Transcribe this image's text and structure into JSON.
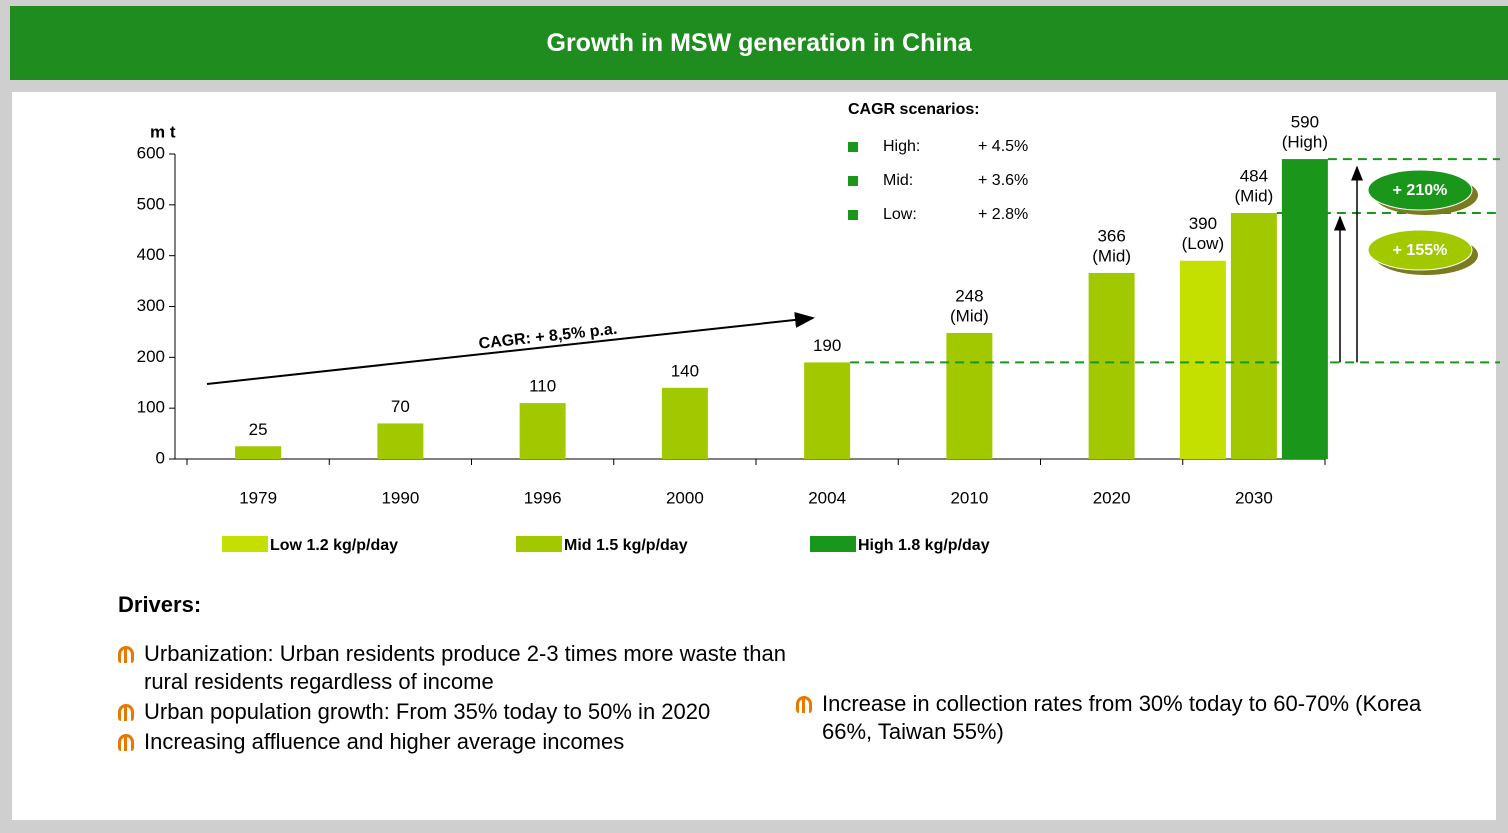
{
  "chart_data": {
    "type": "bar",
    "title": "Growth in MSW generation in China",
    "y_label": "m t",
    "categories": [
      "1979",
      "1990",
      "1996",
      "2000",
      "2004",
      "2010",
      "2020",
      "2030"
    ],
    "series": [
      {
        "name": "Low 1.2 kg/p/day",
        "color": "#c4e000",
        "values": [
          null,
          null,
          null,
          null,
          null,
          null,
          null,
          390
        ],
        "value_labels": [
          null,
          null,
          null,
          null,
          null,
          null,
          null,
          [
            "390",
            "(Low)"
          ]
        ]
      },
      {
        "name": "Mid 1.5 kg/p/day",
        "color": "#a2c800",
        "values": [
          25,
          70,
          110,
          140,
          190,
          248,
          366,
          484
        ],
        "value_labels": [
          [
            "25"
          ],
          [
            "70"
          ],
          [
            "110"
          ],
          [
            "140"
          ],
          [
            "190"
          ],
          [
            "248",
            "(Mid)"
          ],
          [
            "366",
            "(Mid)"
          ],
          [
            "484",
            "(Mid)"
          ]
        ]
      },
      {
        "name": "High 1.8 kg/p/day",
        "color": "#1a961a",
        "values": [
          null,
          null,
          null,
          null,
          null,
          null,
          null,
          590
        ],
        "value_labels": [
          null,
          null,
          null,
          null,
          null,
          null,
          null,
          [
            "590",
            "(High)"
          ]
        ]
      }
    ],
    "ylim": [
      0,
      600
    ],
    "yticks": [
      0,
      100,
      200,
      300,
      400,
      500,
      600
    ],
    "scenarios": {
      "title": "CAGR scenarios:",
      "items": [
        {
          "label": "High:",
          "value": "+ 4.5%"
        },
        {
          "label": "Mid:",
          "value": "+ 3.6%"
        },
        {
          "label": "Low:",
          "value": "+ 2.8%"
        }
      ]
    },
    "annotations": {
      "cagr_history": "CAGR: + 8,5% p.a.",
      "growth_high": "+ 210%",
      "growth_mid": "+ 155%"
    }
  },
  "drivers": {
    "title": "Drivers:",
    "left": [
      "Urbanization: Urban residents produce 2-3 times more waste than rural residents regardless of income",
      "Urban population growth: From 35% today to 50% in 2020",
      "Increasing affluence and higher average incomes"
    ],
    "right": [
      "Increase in collection rates from 30% today to 60-70% (Korea 66%, Taiwan 55%)"
    ]
  }
}
